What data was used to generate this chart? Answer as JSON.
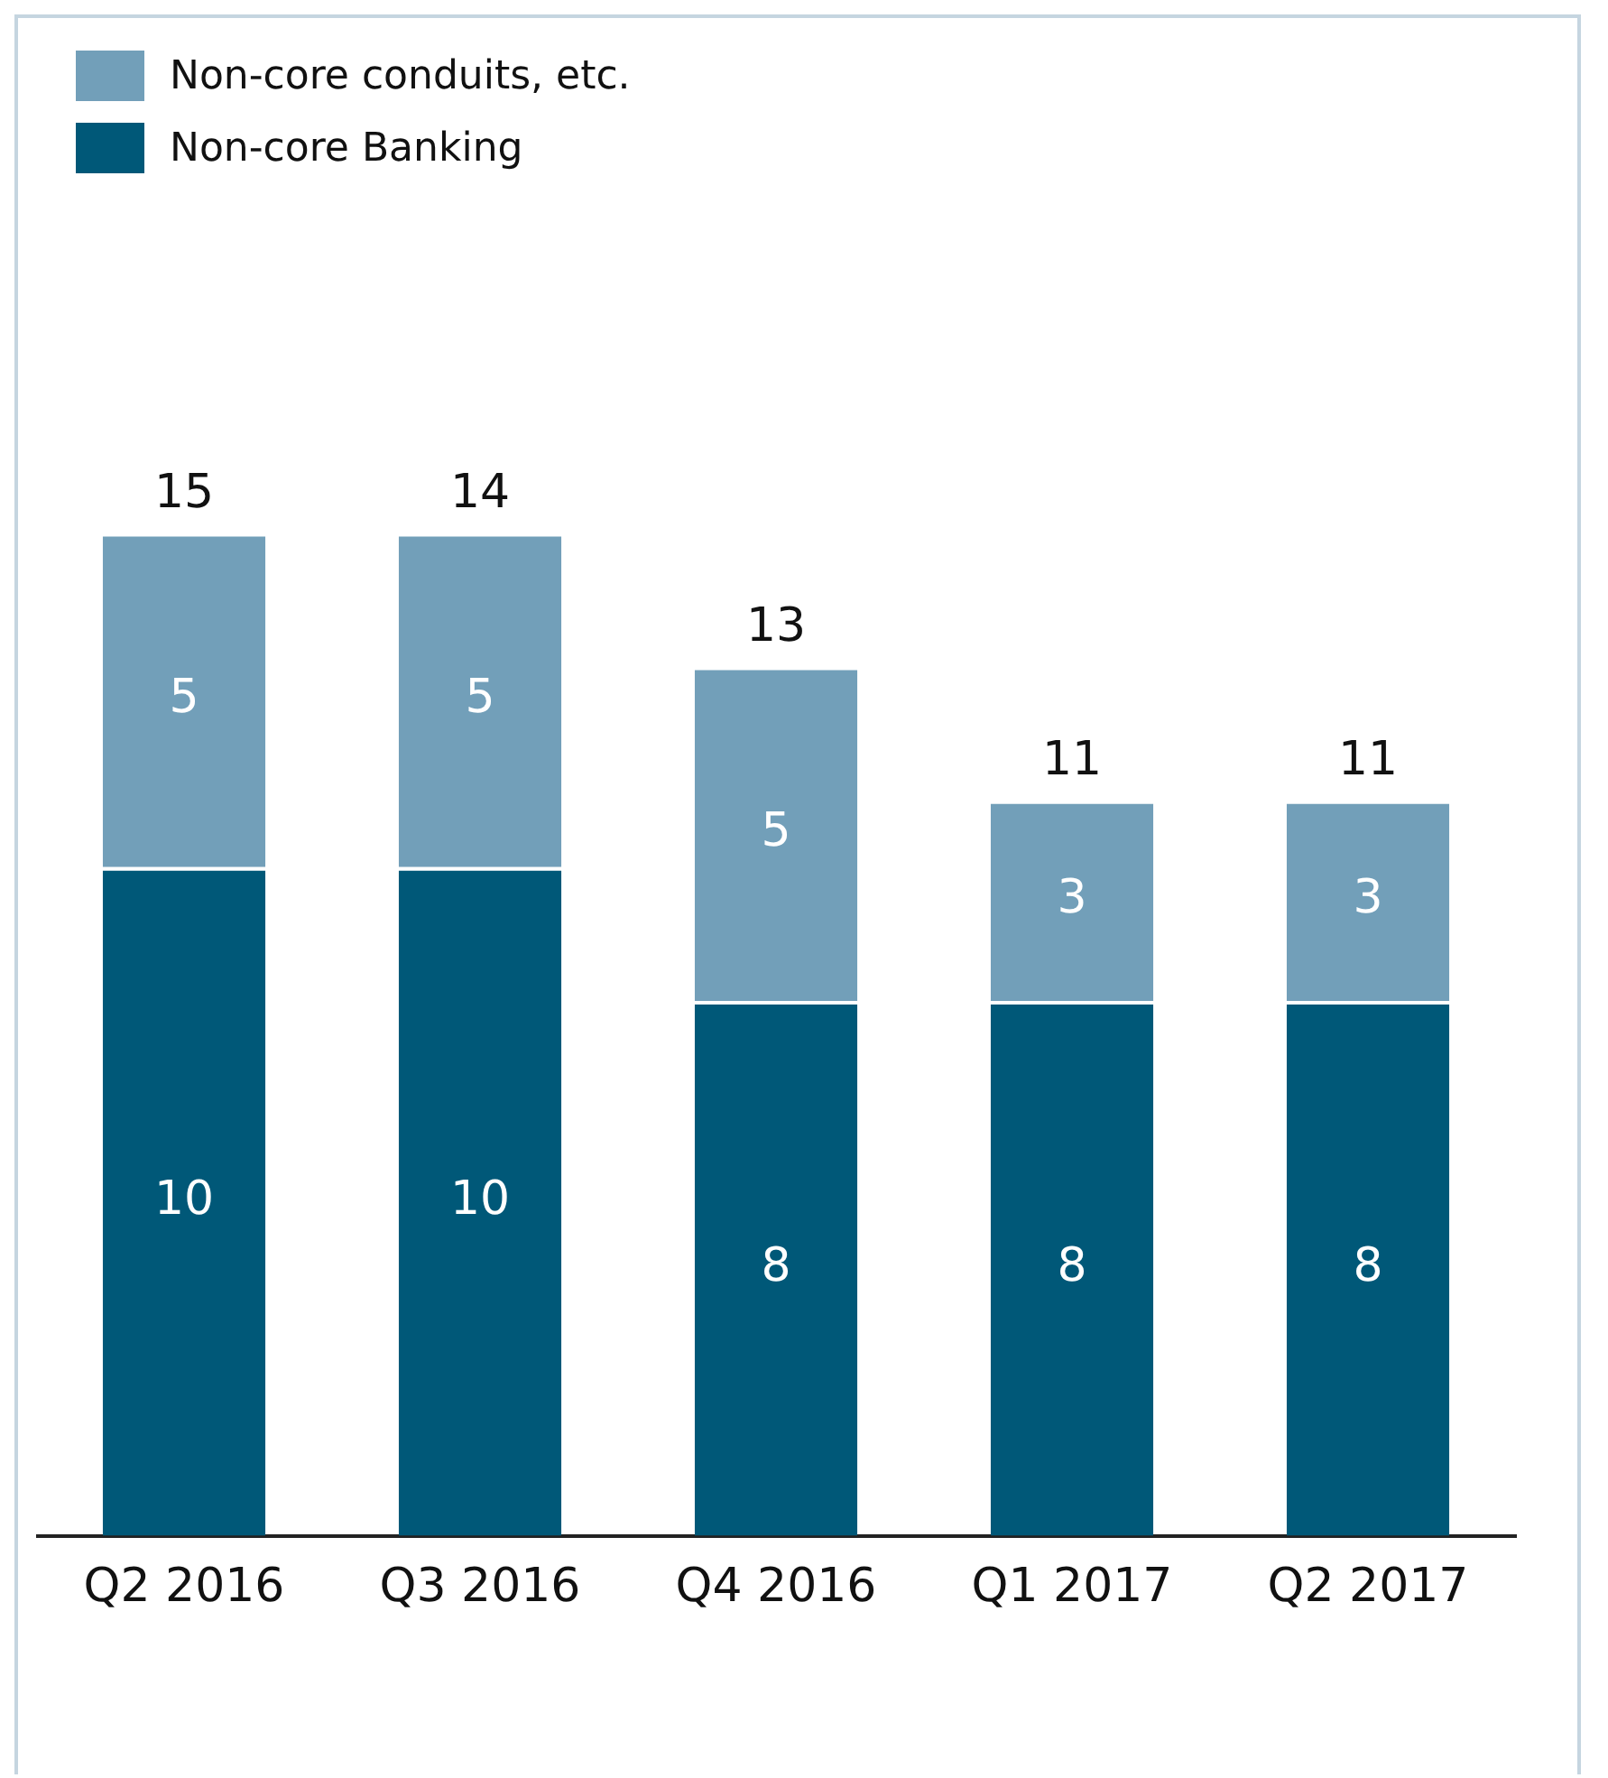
{
  "chart_data": {
    "type": "bar",
    "stacked": true,
    "categories": [
      "Q2 2016",
      "Q3 2016",
      "Q4 2016",
      "Q1 2017",
      "Q2 2017"
    ],
    "series": [
      {
        "name": "Non-core Banking",
        "color": "#005878",
        "values": [
          10,
          10,
          8,
          8,
          8
        ]
      },
      {
        "name": "Non-core conduits, etc.",
        "color": "#729fb9",
        "values": [
          5,
          5,
          5,
          3,
          3
        ]
      }
    ],
    "data_labels": true,
    "totals": [
      "15",
      "14",
      "13",
      "11",
      "11"
    ],
    "legend": "top left",
    "grid": false
  }
}
